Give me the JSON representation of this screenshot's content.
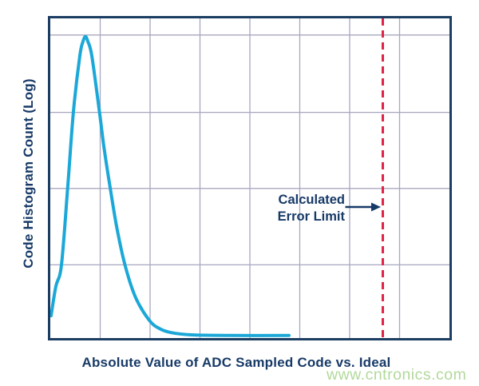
{
  "page": {
    "background": "#ffffff"
  },
  "axes": {
    "x_label": "Absolute Value of ADC Sampled Code vs. Ideal",
    "y_label": "Code Histogram Count (Log)"
  },
  "annotation": {
    "line1": "Calculated",
    "line2": "Error Limit"
  },
  "watermark": {
    "text": "www.cntronics.com"
  },
  "colors": {
    "curve": "#1ba8d8",
    "plot_border": "#1d3e63",
    "grid": "#a7a7c0",
    "error_line": "#e02447",
    "text": "#173a67",
    "watermark": "#b2d99c"
  },
  "chart_data": {
    "type": "line",
    "title": "",
    "xlabel": "Absolute Value of ADC Sampled Code vs. Ideal",
    "ylabel": "Code Histogram Count (Log)",
    "y_scale": "log",
    "grid": true,
    "axis_tick_labels": "none",
    "x_range_normalized": [
      0,
      1
    ],
    "y_range_normalized": [
      0,
      1
    ],
    "gridline_fractions_x": [
      0.125,
      0.25,
      0.375,
      0.5,
      0.625,
      0.75,
      0.875
    ],
    "gridline_fractions_y_from_top": [
      0.052,
      0.294,
      0.532,
      0.771
    ],
    "series": [
      {
        "name": "code-histogram-count",
        "color": "#1ba8d8",
        "stroke_width": 4,
        "points_normalized_x_ybottom": [
          [
            0.002,
            0.07
          ],
          [
            0.014,
            0.162
          ],
          [
            0.028,
            0.229
          ],
          [
            0.044,
            0.478
          ],
          [
            0.058,
            0.709
          ],
          [
            0.074,
            0.883
          ],
          [
            0.082,
            0.928
          ],
          [
            0.088,
            0.943
          ],
          [
            0.094,
            0.928
          ],
          [
            0.104,
            0.883
          ],
          [
            0.123,
            0.709
          ],
          [
            0.135,
            0.592
          ],
          [
            0.149,
            0.478
          ],
          [
            0.167,
            0.343
          ],
          [
            0.187,
            0.229
          ],
          [
            0.213,
            0.129
          ],
          [
            0.247,
            0.057
          ],
          [
            0.273,
            0.03
          ],
          [
            0.303,
            0.017
          ],
          [
            0.353,
            0.01
          ],
          [
            0.452,
            0.008
          ],
          [
            0.598,
            0.008
          ]
        ],
        "shape_note": "log-normal-like peak near left, long flat tail right"
      }
    ],
    "annotations": [
      {
        "type": "vline_dashed",
        "label": "Calculated Error Limit",
        "x_fraction": 0.833,
        "color": "#e02447",
        "dash": [
          9,
          6
        ],
        "stroke_width": 3
      },
      {
        "type": "arrow",
        "from_x_fraction": 0.739,
        "to_x_fraction": 0.828,
        "y_fraction_from_top": 0.59,
        "color": "#173a67"
      }
    ],
    "legend": "none"
  }
}
